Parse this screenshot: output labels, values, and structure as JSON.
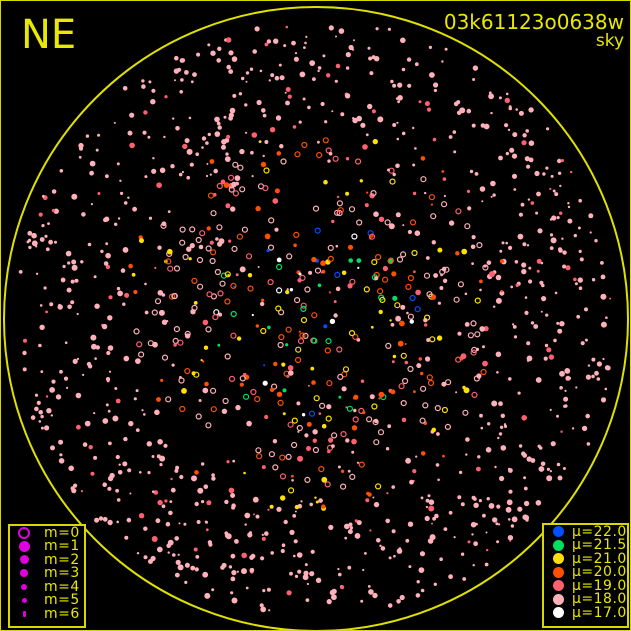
{
  "header": {
    "direction": "NE",
    "frame_id": "03k61123o0638w",
    "band": "sky"
  },
  "colors": {
    "horizon": "#e0e000",
    "text": "#e8e800"
  },
  "magnitude_legend": [
    {
      "label": "m=0",
      "style": "ring"
    },
    {
      "label": "m=1",
      "style": "dot"
    },
    {
      "label": "m=2",
      "style": "dot"
    },
    {
      "label": "m=3",
      "style": "dot"
    },
    {
      "label": "m=4",
      "style": "dot"
    },
    {
      "label": "m=5",
      "style": "dot"
    },
    {
      "label": "m=6",
      "style": "dot"
    }
  ],
  "magnitude_legend_color": "#e000e0",
  "surface_brightness_legend": [
    {
      "label": "μ=22.0",
      "color": "#0050ff"
    },
    {
      "label": "μ=21.5",
      "color": "#00e060"
    },
    {
      "label": "μ=21.0",
      "color": "#ffe000"
    },
    {
      "label": "μ=20.0",
      "color": "#ff5000"
    },
    {
      "label": "μ=19.0",
      "color": "#ff6070"
    },
    {
      "label": "μ=18.0",
      "color": "#ffb0b8"
    },
    {
      "label": "μ=17.0",
      "color": "#ffffff"
    }
  ]
}
